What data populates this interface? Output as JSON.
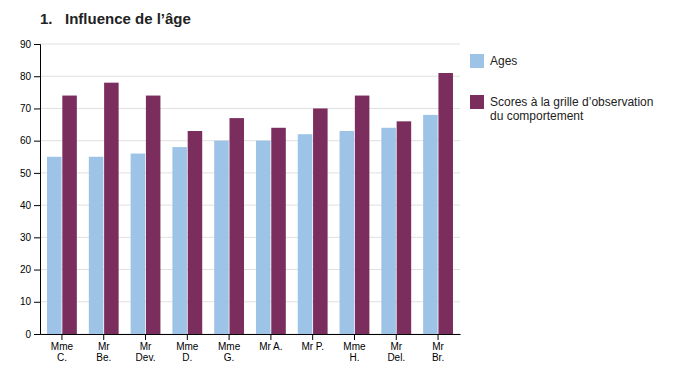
{
  "chart_data": {
    "type": "bar",
    "title": "1.   Influence de l’âge",
    "categories": [
      "Mme\nC.",
      "Mr\nBe.",
      "Mr\nDev.",
      "Mme\nD.",
      "Mme\nG.",
      "Mr A.",
      "Mr P.",
      "Mme\nH.",
      "Mr\nDel.",
      "Mr\nBr."
    ],
    "series": [
      {
        "name": "Ages",
        "color": "#9DC3E6",
        "values": [
          55,
          55,
          56,
          58,
          60,
          60,
          62,
          63,
          64,
          68
        ]
      },
      {
        "name": "Scores à la grille d’observation\ndu comportement",
        "color": "#7B2D5E",
        "values": [
          74,
          78,
          74,
          63,
          67,
          64,
          70,
          74,
          66,
          81
        ]
      }
    ],
    "ylim": [
      0,
      90
    ],
    "yticks": [
      0,
      10,
      20,
      30,
      40,
      50,
      60,
      70,
      80,
      90
    ],
    "grid": true,
    "legend": "right"
  }
}
